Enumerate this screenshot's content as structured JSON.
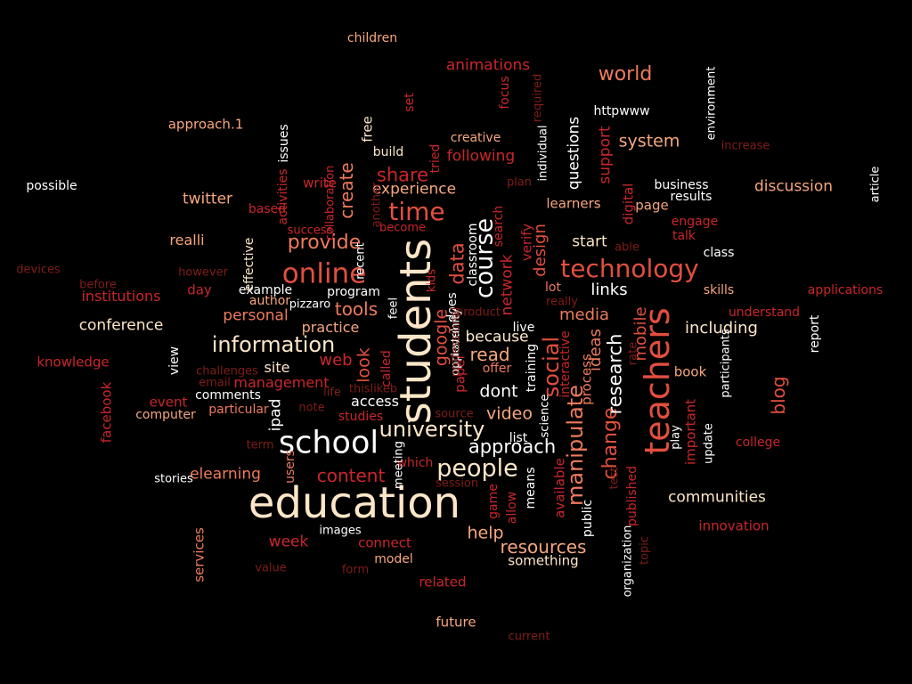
{
  "palette": {
    "cream": "#fde6c8",
    "white": "#ffffff",
    "peach": "#f7a77e",
    "salmon": "#ee7b5c",
    "coral": "#e24f3f",
    "red": "#c9262b",
    "darkred": "#9b1419",
    "brown": "#7f1d17"
  },
  "words": [
    {
      "text": "education",
      "size": 48,
      "color": "cream"
    },
    {
      "text": "students",
      "size": 48,
      "color": "cream",
      "rotate": true
    },
    {
      "text": "teachers",
      "size": 38,
      "color": "coral",
      "rotate": true
    },
    {
      "text": "school",
      "size": 35,
      "color": "white"
    },
    {
      "text": "online",
      "size": 31,
      "color": "coral"
    },
    {
      "text": "technology",
      "size": 28,
      "color": "coral"
    },
    {
      "text": "time",
      "size": 28,
      "color": "coral"
    },
    {
      "text": "people",
      "size": 27,
      "color": "cream"
    },
    {
      "text": "course",
      "size": 27,
      "color": "white",
      "rotate": true
    },
    {
      "text": "information",
      "size": 24,
      "color": "cream"
    },
    {
      "text": "university",
      "size": 24,
      "color": "cream"
    },
    {
      "text": "social",
      "size": 24,
      "color": "coral",
      "rotate": true
    },
    {
      "text": "manipulate",
      "size": 24,
      "color": "salmon",
      "rotate": true
    },
    {
      "text": "change",
      "size": 22,
      "color": "coral",
      "rotate": true
    },
    {
      "text": "research",
      "size": 21,
      "color": "white",
      "rotate": true
    },
    {
      "text": "provide",
      "size": 22,
      "color": "salmon"
    },
    {
      "text": "world",
      "size": 22,
      "color": "salmon"
    },
    {
      "text": "data",
      "size": 21,
      "color": "coral",
      "rotate": true
    },
    {
      "text": "approach",
      "size": 21,
      "color": "white"
    },
    {
      "text": "resources",
      "size": 20,
      "color": "peach"
    },
    {
      "text": "share",
      "size": 21,
      "color": "red"
    },
    {
      "text": "content",
      "size": 20,
      "color": "red"
    },
    {
      "text": "tools",
      "size": 20,
      "color": "salmon"
    },
    {
      "text": "help",
      "size": 19,
      "color": "peach"
    },
    {
      "text": "create",
      "size": 20,
      "color": "salmon",
      "rotate": true
    },
    {
      "text": "google",
      "size": 19,
      "color": "coral",
      "rotate": true
    },
    {
      "text": "blog",
      "size": 20,
      "color": "coral",
      "rotate": true
    },
    {
      "text": "system",
      "size": 19,
      "color": "peach"
    },
    {
      "text": "read",
      "size": 20,
      "color": "peach"
    },
    {
      "text": "look",
      "size": 19,
      "color": "coral",
      "rotate": true
    },
    {
      "text": "dont",
      "size": 19,
      "color": "white"
    },
    {
      "text": "video",
      "size": 19,
      "color": "peach"
    },
    {
      "text": "media",
      "size": 18,
      "color": "salmon"
    },
    {
      "text": "links",
      "size": 18,
      "color": "white"
    },
    {
      "text": "including",
      "size": 18,
      "color": "cream"
    },
    {
      "text": "ideas",
      "size": 18,
      "color": "salmon",
      "rotate": true
    },
    {
      "text": "mobile",
      "size": 18,
      "color": "coral",
      "rotate": true
    },
    {
      "text": "design",
      "size": 18,
      "color": "coral",
      "rotate": true
    },
    {
      "text": "personal",
      "size": 17,
      "color": "salmon"
    },
    {
      "text": "elearning",
      "size": 17,
      "color": "salmon"
    },
    {
      "text": "experience",
      "size": 17,
      "color": "peach"
    },
    {
      "text": "following",
      "size": 17,
      "color": "red"
    },
    {
      "text": "animations",
      "size": 17,
      "color": "red"
    },
    {
      "text": "conference",
      "size": 17,
      "color": "cream"
    },
    {
      "text": "communities",
      "size": 17,
      "color": "cream"
    },
    {
      "text": "web",
      "size": 18,
      "color": "red"
    },
    {
      "text": "because",
      "size": 17,
      "color": "cream"
    },
    {
      "text": "discussion",
      "size": 17,
      "color": "peach"
    },
    {
      "text": "management",
      "size": 16,
      "color": "red"
    },
    {
      "text": "practice",
      "size": 16,
      "color": "peach"
    },
    {
      "text": "questions",
      "size": 17,
      "color": "white",
      "rotate": true
    },
    {
      "text": "twitter",
      "size": 17,
      "color": "peach"
    },
    {
      "text": "realli",
      "size": 16,
      "color": "peach"
    },
    {
      "text": "start",
      "size": 17,
      "color": "cream"
    },
    {
      "text": "support",
      "size": 17,
      "color": "red",
      "rotate": true
    },
    {
      "text": "network",
      "size": 17,
      "color": "red",
      "rotate": true
    },
    {
      "text": "week",
      "size": 17,
      "color": "red"
    },
    {
      "text": "ipad",
      "size": 17,
      "color": "white",
      "rotate": true
    },
    {
      "text": "access",
      "size": 16,
      "color": "white"
    },
    {
      "text": "site",
      "size": 16,
      "color": "cream"
    },
    {
      "text": "process",
      "size": 15,
      "color": "salmon",
      "rotate": true
    },
    {
      "text": "institutions",
      "size": 16,
      "color": "red"
    },
    {
      "text": "knowledge",
      "size": 15,
      "color": "red"
    },
    {
      "text": "something",
      "size": 15,
      "color": "cream"
    },
    {
      "text": "innovation",
      "size": 15,
      "color": "red"
    },
    {
      "text": "book",
      "size": 15,
      "color": "peach"
    },
    {
      "text": "related",
      "size": 15,
      "color": "red"
    },
    {
      "text": "future",
      "size": 15,
      "color": "peach"
    },
    {
      "text": "connect",
      "size": 15,
      "color": "red"
    },
    {
      "text": "verify",
      "size": 15,
      "color": "red",
      "rotate": true
    },
    {
      "text": "services",
      "size": 15,
      "color": "salmon",
      "rotate": true
    },
    {
      "text": "facebook",
      "size": 15,
      "color": "red",
      "rotate": true
    },
    {
      "text": "important",
      "size": 15,
      "color": "red",
      "rotate": true
    },
    {
      "text": "approach.1",
      "size": 15,
      "color": "peach"
    },
    {
      "text": "page",
      "size": 15,
      "color": "peach"
    },
    {
      "text": "learners",
      "size": 15,
      "color": "peach"
    },
    {
      "text": "build",
      "size": 14,
      "color": "cream"
    },
    {
      "text": "write",
      "size": 15,
      "color": "red"
    },
    {
      "text": "paper",
      "size": 15,
      "color": "red",
      "rotate": true
    },
    {
      "text": "free",
      "size": 15,
      "color": "cream",
      "rotate": true
    },
    {
      "text": "example",
      "size": 14,
      "color": "white"
    },
    {
      "text": "program",
      "size": 14,
      "color": "white"
    },
    {
      "text": "day",
      "size": 15,
      "color": "red"
    },
    {
      "text": "event",
      "size": 15,
      "color": "red"
    },
    {
      "text": "computer",
      "size": 14,
      "color": "peach"
    },
    {
      "text": "comments",
      "size": 14,
      "color": "white"
    },
    {
      "text": "particular",
      "size": 14,
      "color": "salmon"
    },
    {
      "text": "studies",
      "size": 14,
      "color": "red"
    },
    {
      "text": "which",
      "size": 14,
      "color": "red"
    },
    {
      "text": "users",
      "size": 14,
      "color": "salmon",
      "rotate": true
    },
    {
      "text": "model",
      "size": 14,
      "color": "peach"
    },
    {
      "text": "engage",
      "size": 14,
      "color": "red"
    },
    {
      "text": "talk",
      "size": 14,
      "color": "red"
    },
    {
      "text": "class",
      "size": 14,
      "color": "white"
    },
    {
      "text": "business",
      "size": 14,
      "color": "white"
    },
    {
      "text": "results",
      "size": 14,
      "color": "white"
    },
    {
      "text": "skills",
      "size": 14,
      "color": "peach"
    },
    {
      "text": "understand",
      "size": 14,
      "color": "red"
    },
    {
      "text": "creative",
      "size": 14,
      "color": "peach"
    },
    {
      "text": "children",
      "size": 14,
      "color": "peach"
    },
    {
      "text": "possible",
      "size": 14,
      "color": "white"
    },
    {
      "text": "author",
      "size": 14,
      "color": "peach"
    },
    {
      "text": "httpwww",
      "size": 14,
      "color": "white"
    },
    {
      "text": "digital",
      "size": 15,
      "color": "red",
      "rotate": true
    },
    {
      "text": "available",
      "size": 15,
      "color": "red",
      "rotate": true
    },
    {
      "text": "published",
      "size": 14,
      "color": "red",
      "rotate": true
    },
    {
      "text": "interactive",
      "size": 14,
      "color": "red",
      "rotate": true
    },
    {
      "text": "training",
      "size": 14,
      "color": "white",
      "rotate": true
    },
    {
      "text": "means",
      "size": 14,
      "color": "white",
      "rotate": true
    },
    {
      "text": "game",
      "size": 14,
      "color": "red",
      "rotate": true
    },
    {
      "text": "allow",
      "size": 14,
      "color": "red",
      "rotate": true
    },
    {
      "text": "public",
      "size": 14,
      "color": "white",
      "rotate": true
    },
    {
      "text": "does",
      "size": 14,
      "color": "white",
      "rotate": true
    },
    {
      "text": "lot",
      "size": 14,
      "color": "salmon"
    },
    {
      "text": "list",
      "size": 14,
      "color": "white"
    },
    {
      "text": "live",
      "size": 14,
      "color": "white"
    },
    {
      "text": "offer",
      "size": 14,
      "color": "salmon"
    },
    {
      "text": "based",
      "size": 14,
      "color": "red"
    },
    {
      "text": "activities",
      "size": 14,
      "color": "red",
      "rotate": true
    },
    {
      "text": "issues",
      "size": 14,
      "color": "white",
      "rotate": true
    },
    {
      "text": "effective",
      "size": 14,
      "color": "cream",
      "rotate": true
    },
    {
      "text": "view",
      "size": 14,
      "color": "white",
      "rotate": true
    },
    {
      "text": "set",
      "size": 14,
      "color": "red",
      "rotate": true
    },
    {
      "text": "focus",
      "size": 14,
      "color": "red",
      "rotate": true
    },
    {
      "text": "college",
      "size": 14,
      "color": "red"
    },
    {
      "text": "applications",
      "size": 14,
      "color": "red"
    },
    {
      "text": "report",
      "size": 14,
      "color": "white",
      "rotate": true
    },
    {
      "text": "called",
      "size": 14,
      "color": "red",
      "rotate": true
    },
    {
      "text": "feel",
      "size": 13,
      "color": "white",
      "rotate": true
    },
    {
      "text": "kids",
      "size": 13,
      "color": "red",
      "rotate": true
    },
    {
      "text": "classroom",
      "size": 14,
      "color": "white",
      "rotate": true
    },
    {
      "text": "collaboration",
      "size": 13,
      "color": "red",
      "rotate": true
    },
    {
      "text": "tried",
      "size": 14,
      "color": "red",
      "rotate": true
    },
    {
      "text": "search",
      "size": 14,
      "color": "red",
      "rotate": true
    },
    {
      "text": "recent",
      "size": 13,
      "color": "white",
      "rotate": true
    },
    {
      "text": "become",
      "size": 13,
      "color": "red"
    },
    {
      "text": "success",
      "size": 13,
      "color": "red"
    },
    {
      "text": "product",
      "size": 13,
      "color": "brown"
    },
    {
      "text": "really",
      "size": 13,
      "color": "brown"
    },
    {
      "text": "able",
      "size": 13,
      "color": "brown"
    },
    {
      "text": "increase",
      "size": 13,
      "color": "brown"
    },
    {
      "text": "plan",
      "size": 13,
      "color": "brown"
    },
    {
      "text": "however",
      "size": 13,
      "color": "brown"
    },
    {
      "text": "before",
      "size": 13,
      "color": "brown"
    },
    {
      "text": "challenges",
      "size": 13,
      "color": "brown"
    },
    {
      "text": "email",
      "size": 13,
      "color": "brown"
    },
    {
      "text": "life",
      "size": 13,
      "color": "brown"
    },
    {
      "text": "thislikeb",
      "size": 13,
      "color": "brown"
    },
    {
      "text": "note",
      "size": 13,
      "color": "brown"
    },
    {
      "text": "source",
      "size": 13,
      "color": "brown"
    },
    {
      "text": "term",
      "size": 13,
      "color": "brown"
    },
    {
      "text": "session",
      "size": 13,
      "color": "brown"
    },
    {
      "text": "images",
      "size": 13,
      "color": "white"
    },
    {
      "text": "value",
      "size": 13,
      "color": "brown"
    },
    {
      "text": "form",
      "size": 13,
      "color": "brown"
    },
    {
      "text": "current",
      "size": 13,
      "color": "brown"
    },
    {
      "text": "pizzaro",
      "size": 13,
      "color": "white"
    },
    {
      "text": "devices",
      "size": 13,
      "color": "brown"
    },
    {
      "text": "stories",
      "size": 13,
      "color": "white"
    },
    {
      "text": "article",
      "size": 13,
      "color": "white",
      "rotate": true
    },
    {
      "text": "environment",
      "size": 13,
      "color": "white",
      "rotate": true
    },
    {
      "text": "individual",
      "size": 13,
      "color": "white",
      "rotate": true
    },
    {
      "text": "required",
      "size": 13,
      "color": "brown",
      "rotate": true
    },
    {
      "text": "another",
      "size": 13,
      "color": "brown",
      "rotate": true
    },
    {
      "text": "meeting",
      "size": 13,
      "color": "white",
      "rotate": true
    },
    {
      "text": "science",
      "size": 13,
      "color": "white",
      "rotate": true
    },
    {
      "text": "test",
      "size": 13,
      "color": "brown",
      "rotate": true
    },
    {
      "text": "rate",
      "size": 13,
      "color": "brown",
      "rotate": true
    },
    {
      "text": "play",
      "size": 13,
      "color": "white",
      "rotate": true
    },
    {
      "text": "update",
      "size": 13,
      "color": "white",
      "rotate": true
    },
    {
      "text": "participants",
      "size": 13,
      "color": "white",
      "rotate": true
    },
    {
      "text": "topic",
      "size": 13,
      "color": "brown",
      "rotate": true
    },
    {
      "text": "organization",
      "size": 13,
      "color": "white",
      "rotate": true
    },
    {
      "text": "level",
      "size": 13,
      "color": "white",
      "rotate": true
    },
    {
      "text": "opportunity",
      "size": 13,
      "color": "white",
      "rotate": true
    },
    {
      "text": "professional",
      "size": 13,
      "color": "brown",
      "rotate": true
    }
  ]
}
